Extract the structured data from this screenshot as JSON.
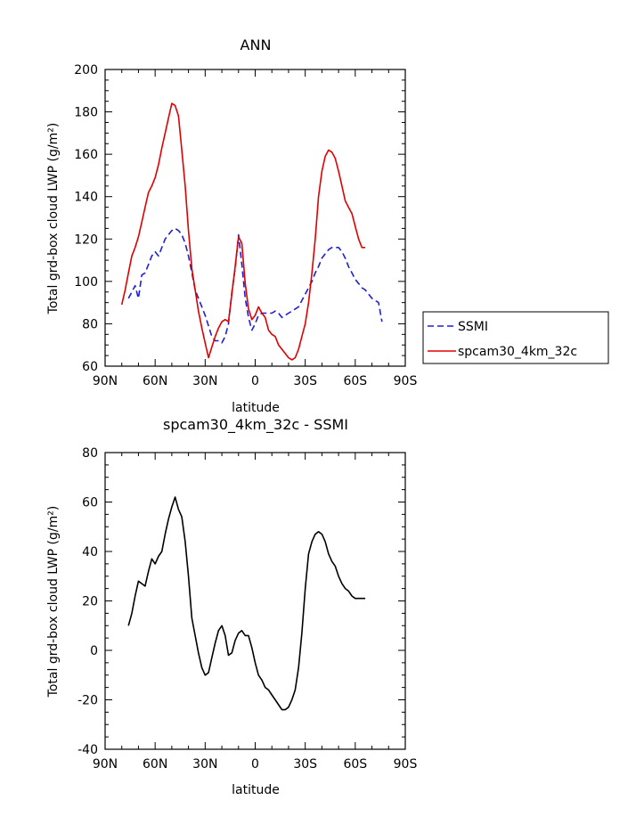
{
  "chart_data": [
    {
      "type": "line",
      "title": "ANN",
      "xlabel": "latitude",
      "ylabel": "Total grd-box cloud LWP (g/m²)",
      "xlim": [
        90,
        -90
      ],
      "ylim": [
        60,
        200
      ],
      "x_ticks": [
        90,
        60,
        30,
        0,
        -30,
        -60,
        -90
      ],
      "x_tick_labels": [
        "90N",
        "60N",
        "30N",
        "0",
        "30S",
        "60S",
        "90S"
      ],
      "y_ticks": [
        60,
        80,
        100,
        120,
        140,
        160,
        180,
        200
      ],
      "y_tick_labels": [
        "60",
        "80",
        "100",
        "120",
        "140",
        "160",
        "180",
        "200"
      ],
      "legend_position": "right",
      "series": [
        {
          "name": "SSMI",
          "color": "#1f1fd6",
          "style": "dashed",
          "x": [
            76,
            74,
            72,
            70,
            68,
            66,
            64,
            62,
            60,
            58,
            56,
            54,
            52,
            50,
            48,
            46,
            44,
            42,
            40,
            38,
            36,
            34,
            32,
            30,
            28,
            26,
            24,
            22,
            20,
            18,
            16,
            14,
            12,
            10,
            8,
            6,
            4,
            2,
            0,
            -2,
            -4,
            -6,
            -8,
            -10,
            -12,
            -14,
            -16,
            -18,
            -20,
            -22,
            -24,
            -26,
            -28,
            -30,
            -32,
            -34,
            -36,
            -38,
            -40,
            -42,
            -44,
            -46,
            -48,
            -50,
            -52,
            -54,
            -56,
            -58,
            -60,
            -62,
            -64,
            -66,
            -68,
            -70,
            -72,
            -74,
            -76
          ],
          "y": [
            92,
            95,
            98,
            92,
            103,
            104,
            108,
            112,
            114,
            112,
            116,
            120,
            122,
            124,
            125,
            124,
            122,
            118,
            112,
            104,
            96,
            92,
            88,
            84,
            79,
            74,
            72,
            72,
            71,
            74,
            80,
            95,
            106,
            122,
            108,
            92,
            83,
            77,
            80,
            84,
            85,
            85,
            85,
            85,
            86,
            85,
            83,
            84,
            85,
            86,
            87,
            88,
            91,
            94,
            97,
            100,
            104,
            107,
            111,
            113,
            115,
            116,
            116,
            116,
            114,
            111,
            107,
            104,
            101,
            99,
            97,
            96,
            94,
            92,
            91,
            90,
            81
          ]
        },
        {
          "name": "spcam30_4km_32c",
          "color": "#e00000",
          "style": "solid",
          "x": [
            80,
            78,
            76,
            74,
            72,
            70,
            68,
            66,
            64,
            62,
            60,
            58,
            56,
            54,
            52,
            50,
            48,
            46,
            44,
            42,
            40,
            38,
            36,
            34,
            32,
            30,
            28,
            26,
            24,
            22,
            20,
            18,
            16,
            14,
            12,
            10,
            8,
            6,
            4,
            2,
            0,
            -2,
            -4,
            -6,
            -8,
            -10,
            -12,
            -14,
            -16,
            -18,
            -20,
            -22,
            -24,
            -26,
            -28,
            -30,
            -32,
            -34,
            -36,
            -38,
            -40,
            -42,
            -44,
            -46,
            -48,
            -50,
            -52,
            -54,
            -56,
            -58,
            -60,
            -62,
            -64,
            -66
          ],
          "y": [
            89,
            96,
            104,
            112,
            116,
            121,
            128,
            135,
            142,
            145,
            149,
            155,
            163,
            170,
            177,
            184,
            183,
            178,
            162,
            145,
            124,
            106,
            96,
            86,
            78,
            71,
            64,
            69,
            74,
            78,
            81,
            82,
            81,
            94,
            107,
            121,
            118,
            99,
            87,
            82,
            84,
            88,
            85,
            83,
            77,
            75,
            74,
            70,
            68,
            66,
            64,
            63,
            64,
            68,
            74,
            80,
            90,
            104,
            120,
            140,
            152,
            159,
            162,
            161,
            158,
            152,
            145,
            138,
            135,
            132,
            126,
            120,
            116,
            116
          ]
        }
      ]
    },
    {
      "type": "line",
      "title": "spcam30_4km_32c - SSMI",
      "xlabel": "latitude",
      "ylabel": "Total grd-box cloud LWP (g/m²)",
      "xlim": [
        90,
        -90
      ],
      "ylim": [
        -40,
        80
      ],
      "x_ticks": [
        90,
        60,
        30,
        0,
        -30,
        -60,
        -90
      ],
      "x_tick_labels": [
        "90N",
        "60N",
        "30N",
        "0",
        "30S",
        "60S",
        "90S"
      ],
      "y_ticks": [
        -40,
        -20,
        0,
        20,
        40,
        60,
        80
      ],
      "y_tick_labels": [
        "-40",
        "-20",
        "0",
        "20",
        "40",
        "60",
        "80"
      ],
      "series": [
        {
          "color": "#000000",
          "style": "solid",
          "x": [
            76,
            74,
            72,
            70,
            68,
            66,
            64,
            62,
            60,
            58,
            56,
            54,
            52,
            50,
            48,
            46,
            44,
            42,
            40,
            38,
            36,
            34,
            32,
            30,
            28,
            26,
            24,
            22,
            20,
            18,
            16,
            14,
            12,
            10,
            8,
            6,
            4,
            2,
            0,
            -2,
            -4,
            -6,
            -8,
            -10,
            -12,
            -14,
            -16,
            -18,
            -20,
            -22,
            -24,
            -26,
            -28,
            -30,
            -32,
            -34,
            -36,
            -38,
            -40,
            -42,
            -44,
            -46,
            -48,
            -50,
            -52,
            -54,
            -56,
            -58,
            -60,
            -62,
            -64,
            -66
          ],
          "y": [
            10,
            15,
            22,
            28,
            27,
            26,
            32,
            37,
            35,
            38,
            40,
            47,
            53,
            58,
            62,
            57,
            54,
            44,
            30,
            13,
            6,
            -1,
            -7,
            -10,
            -9,
            -3,
            3,
            8,
            10,
            6,
            -2,
            -1,
            4,
            7,
            8,
            6,
            6,
            1,
            -5,
            -10,
            -12,
            -15,
            -16,
            -18,
            -20,
            -22,
            -24,
            -24,
            -23,
            -20,
            -16,
            -7,
            7,
            25,
            39,
            44,
            47,
            48,
            47,
            44,
            39,
            36,
            34,
            30,
            27,
            25,
            24,
            22,
            21,
            21,
            21,
            21
          ]
        }
      ]
    }
  ]
}
